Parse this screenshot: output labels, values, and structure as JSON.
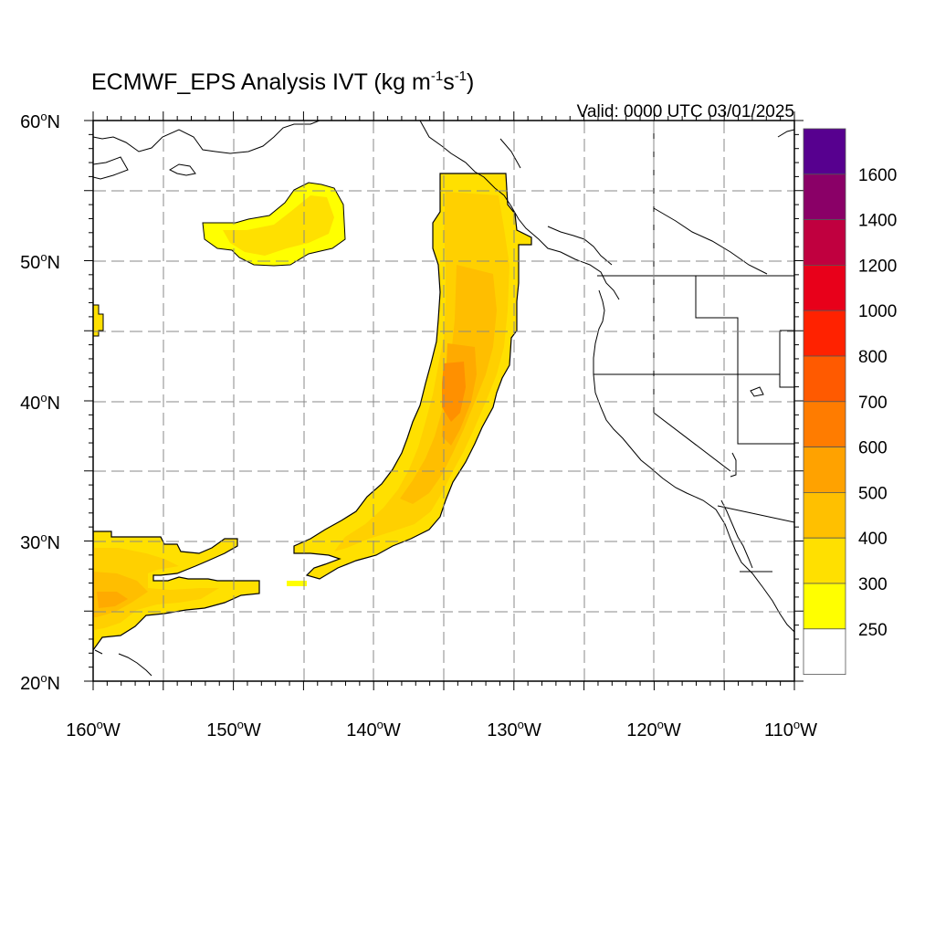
{
  "title": {
    "main": "ECMWF_EPS Analysis IVT (kg m",
    "sup1": "-1",
    "mid": "s",
    "sup2": "-1",
    "end": ")"
  },
  "valid_label": "Valid: 0000 UTC 03/01/2025",
  "map": {
    "lon_range": [
      -160,
      -110
    ],
    "lat_range": [
      20,
      60
    ],
    "lon_ticks": [
      {
        "deg": "160",
        "hem": "W"
      },
      {
        "deg": "150",
        "hem": "W"
      },
      {
        "deg": "140",
        "hem": "W"
      },
      {
        "deg": "130",
        "hem": "W"
      },
      {
        "deg": "120",
        "hem": "W"
      },
      {
        "deg": "110",
        "hem": "W"
      }
    ],
    "lat_ticks": [
      {
        "deg": "60",
        "hem": "N"
      },
      {
        "deg": "50",
        "hem": "N"
      },
      {
        "deg": "40",
        "hem": "N"
      },
      {
        "deg": "30",
        "hem": "N"
      },
      {
        "deg": "20",
        "hem": "N"
      }
    ],
    "grid": "dashed every 5 degrees"
  },
  "colorbar": {
    "labels": [
      "1600",
      "1400",
      "1200",
      "1000",
      "800",
      "700",
      "600",
      "500",
      "400",
      "300",
      "250"
    ],
    "colors_top_to_bottom": [
      "#57008f",
      "#8a0067",
      "#c0003f",
      "#e8001a",
      "#ff2200",
      "#ff5a00",
      "#ff7c00",
      "#ffa200",
      "#ffc000",
      "#ffe000",
      "#ffff00",
      "#ffffff"
    ]
  },
  "ivt_features": [
    {
      "name": "atmospheric river",
      "peak_color": "#ff9000",
      "peak_lat": 41,
      "peak_lon": -134.5
    },
    {
      "name": "subtropical plume",
      "peak_color": "#ffc000"
    },
    {
      "name": "gulf of alaska blob",
      "peak_color": "#ffff00"
    }
  ]
}
